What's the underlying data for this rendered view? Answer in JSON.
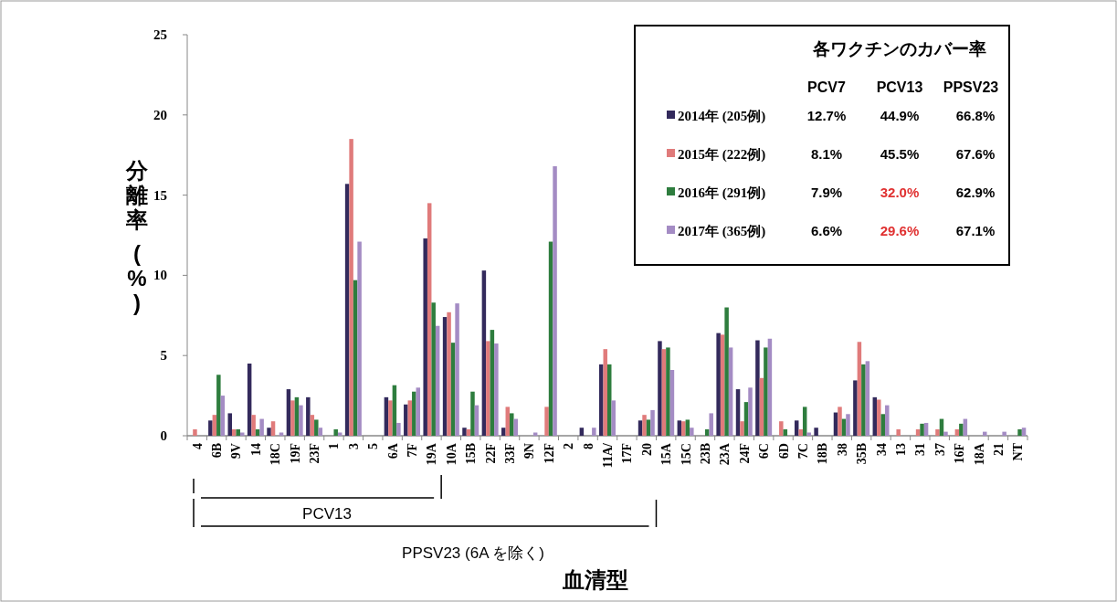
{
  "chart_data": {
    "type": "bar",
    "ylabel": "分離率 (%)",
    "xlabel": "血清型",
    "categories": [
      "4",
      "6B",
      "9V",
      "14",
      "18C",
      "19F",
      "23F",
      "1",
      "3",
      "5",
      "6A",
      "7F",
      "19A",
      "10A",
      "15B",
      "22F",
      "33F",
      "9N",
      "12F",
      "2",
      "8",
      "11A/",
      "17F",
      "20",
      "15A",
      "15C",
      "23B",
      "23A",
      "24F",
      "6C",
      "6D",
      "7C",
      "18B",
      "38",
      "35B",
      "34",
      "13",
      "31",
      "37",
      "16F",
      "18A",
      "21",
      "NT"
    ],
    "series": [
      {
        "name": "2014年 (205例)",
        "color": "#332a5c",
        "values": [
          0,
          0.95,
          1.4,
          4.5,
          0.5,
          2.9,
          2.4,
          0,
          15.7,
          0,
          2.4,
          1.95,
          12.3,
          7.4,
          0.5,
          10.3,
          0.5,
          0,
          0,
          0,
          0.5,
          4.45,
          0,
          0.95,
          5.9,
          0.95,
          0,
          6.4,
          2.9,
          5.95,
          0,
          0.95,
          0.5,
          1.45,
          3.45,
          2.4,
          0,
          0,
          0,
          0,
          0,
          0,
          0
        ]
      },
      {
        "name": "2015年 (222例)",
        "color": "#e07b7b",
        "values": [
          0.4,
          1.3,
          0.4,
          1.3,
          0.9,
          2.2,
          1.3,
          0,
          18.5,
          0,
          2.2,
          2.2,
          14.5,
          7.7,
          0.4,
          5.9,
          1.8,
          0,
          1.8,
          0,
          0,
          5.4,
          0,
          1.3,
          5.4,
          0.9,
          0,
          6.3,
          0.9,
          3.6,
          0.9,
          0.4,
          0,
          1.8,
          5.85,
          2.25,
          0.4,
          0.4,
          0.4,
          0.4,
          0,
          0,
          0
        ]
      },
      {
        "name": "2016年 (291例)",
        "color": "#2e7d3e",
        "values": [
          0,
          3.8,
          0.4,
          0.4,
          0,
          2.4,
          1.0,
          0.4,
          9.7,
          0,
          3.15,
          2.75,
          8.3,
          5.8,
          2.75,
          6.6,
          1.4,
          0,
          12.1,
          0,
          0,
          4.45,
          0,
          1.0,
          5.5,
          1.0,
          0.4,
          8.0,
          2.1,
          5.5,
          0.4,
          1.8,
          0,
          1.05,
          4.45,
          1.35,
          0,
          0.75,
          1.05,
          0.75,
          0,
          0,
          0.4
        ]
      },
      {
        "name": "2017年 (365例)",
        "color": "#a48cc4",
        "values": [
          0,
          2.5,
          0.2,
          1.05,
          0.2,
          1.9,
          0.5,
          0.2,
          12.1,
          0,
          0.8,
          3.0,
          6.85,
          8.25,
          1.9,
          5.75,
          1.05,
          0.2,
          16.8,
          0,
          0.5,
          2.2,
          0,
          1.6,
          4.1,
          0.5,
          1.4,
          5.5,
          3.0,
          6.05,
          0,
          0.2,
          0,
          1.35,
          4.65,
          1.9,
          0,
          0.8,
          0.25,
          1.05,
          0.25,
          0.25,
          0.5
        ]
      }
    ],
    "ylim": [
      0,
      25
    ],
    "yticks": [
      0,
      5,
      10,
      15,
      20,
      25
    ],
    "legend": "top right",
    "annotations": [
      "各ワクチンのカバー率",
      "PCV7",
      "PCV13",
      "PPSV23",
      "12.7%",
      "44.9%",
      "66.8%",
      "8.1%",
      "45.5%",
      "67.6%",
      "7.9%",
      "32.0%",
      "62.9%",
      "6.6%",
      "29.6%",
      "67.1%",
      "PCV13",
      "PPSV23 (6A を除く)"
    ]
  }
}
